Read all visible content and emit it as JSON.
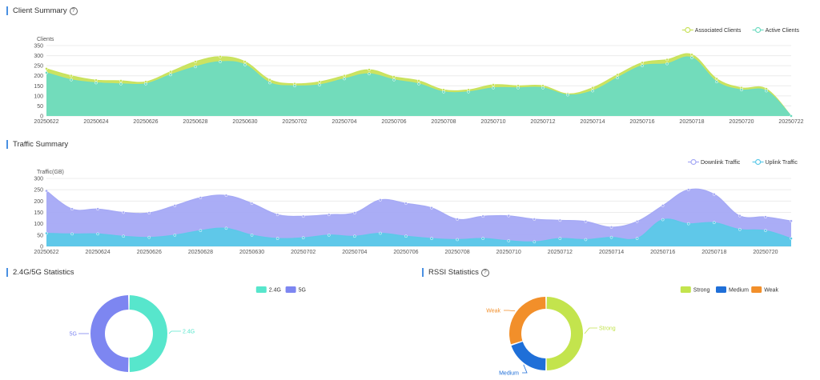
{
  "sections": {
    "client_summary": "Client Summary",
    "traffic_summary": "Traffic Summary",
    "band_stats": "2.4G/5G Statistics",
    "rssi_stats": "RSSI Statistics"
  },
  "help_glyph": "?",
  "colors": {
    "associated": "#c8e25a",
    "active": "#6ddbc0",
    "downlink": "#a5a9f5",
    "uplink": "#5bc9e8",
    "band_24": "#57e6cc",
    "band_5": "#7d86f1",
    "strong": "#c3e44d",
    "medium": "#1f6fd8",
    "weak": "#f28f2a"
  },
  "chart_data": [
    {
      "type": "area",
      "title": "Client Summary",
      "ylabel": "Clients",
      "ylim": [
        0,
        350
      ],
      "yticks": [
        0,
        50,
        100,
        150,
        200,
        250,
        300,
        350
      ],
      "grid": true,
      "legend_position": "top-right",
      "x": [
        "20250622",
        "20250623",
        "20250624",
        "20250625",
        "20250626",
        "20250627",
        "20250628",
        "20250629",
        "20250630",
        "20250701",
        "20250702",
        "20250703",
        "20250704",
        "20250705",
        "20250706",
        "20250707",
        "20250708",
        "20250709",
        "20250710",
        "20250711",
        "20250712",
        "20250713",
        "20250714",
        "20250715",
        "20250716",
        "20250717",
        "20250718",
        "20250719",
        "20250720",
        "20250721",
        "20250722"
      ],
      "xtick_labels": [
        "20250622",
        "20250624",
        "20250626",
        "20250628",
        "20250630",
        "20250702",
        "20250704",
        "20250706",
        "20250708",
        "20250710",
        "20250712",
        "20250714",
        "20250716",
        "20250718",
        "20250720",
        "20250722"
      ],
      "series": [
        {
          "name": "Associated Clients",
          "values": [
            235,
            200,
            178,
            175,
            170,
            220,
            270,
            295,
            270,
            180,
            160,
            170,
            200,
            230,
            195,
            175,
            130,
            130,
            155,
            150,
            150,
            110,
            140,
            205,
            265,
            280,
            305,
            185,
            140,
            135,
            0
          ]
        },
        {
          "name": "Active Clients",
          "values": [
            215,
            180,
            165,
            160,
            160,
            205,
            245,
            270,
            255,
            165,
            150,
            155,
            185,
            210,
            180,
            160,
            120,
            120,
            140,
            140,
            140,
            105,
            125,
            190,
            250,
            260,
            290,
            170,
            130,
            125,
            0
          ]
        }
      ]
    },
    {
      "type": "area",
      "title": "Traffic Summary",
      "ylabel": "Traffic(GB)",
      "ylim": [
        0,
        300
      ],
      "yticks": [
        0,
        50,
        100,
        150,
        200,
        250,
        300
      ],
      "grid": true,
      "legend_position": "top-right",
      "x": [
        "20250622",
        "20250623",
        "20250624",
        "20250625",
        "20250626",
        "20250627",
        "20250628",
        "20250629",
        "20250630",
        "20250701",
        "20250702",
        "20250703",
        "20250704",
        "20250705",
        "20250706",
        "20250707",
        "20250708",
        "20250709",
        "20250710",
        "20250711",
        "20250712",
        "20250713",
        "20250714",
        "20250715",
        "20250716",
        "20250717",
        "20250718",
        "20250719",
        "20250720",
        "20250721"
      ],
      "xtick_labels": [
        "20250622",
        "20250624",
        "20250626",
        "20250628",
        "20250630",
        "20250702",
        "20250704",
        "20250706",
        "20250708",
        "20250710",
        "20250712",
        "20250714",
        "20250716",
        "20250718",
        "20250720"
      ],
      "series": [
        {
          "name": "Downlink Traffic",
          "values": [
            245,
            165,
            165,
            150,
            148,
            180,
            215,
            225,
            190,
            140,
            133,
            140,
            148,
            205,
            190,
            170,
            120,
            133,
            135,
            120,
            115,
            110,
            85,
            110,
            180,
            250,
            230,
            135,
            130,
            112
          ]
        },
        {
          "name": "Uplink Traffic",
          "values": [
            58,
            55,
            55,
            45,
            40,
            50,
            70,
            80,
            50,
            35,
            38,
            50,
            45,
            58,
            45,
            35,
            30,
            35,
            25,
            20,
            35,
            30,
            40,
            35,
            118,
            100,
            105,
            75,
            70,
            35
          ]
        }
      ]
    },
    {
      "type": "pie",
      "title": "2.4G/5G Statistics",
      "legend_position": "top-right",
      "labels": [
        "2.4G",
        "5G"
      ],
      "values": [
        50,
        50
      ]
    },
    {
      "type": "pie",
      "title": "RSSI Statistics",
      "legend_position": "top-right",
      "labels": [
        "Strong",
        "Medium",
        "Weak"
      ],
      "values": [
        50,
        20,
        30
      ]
    }
  ]
}
